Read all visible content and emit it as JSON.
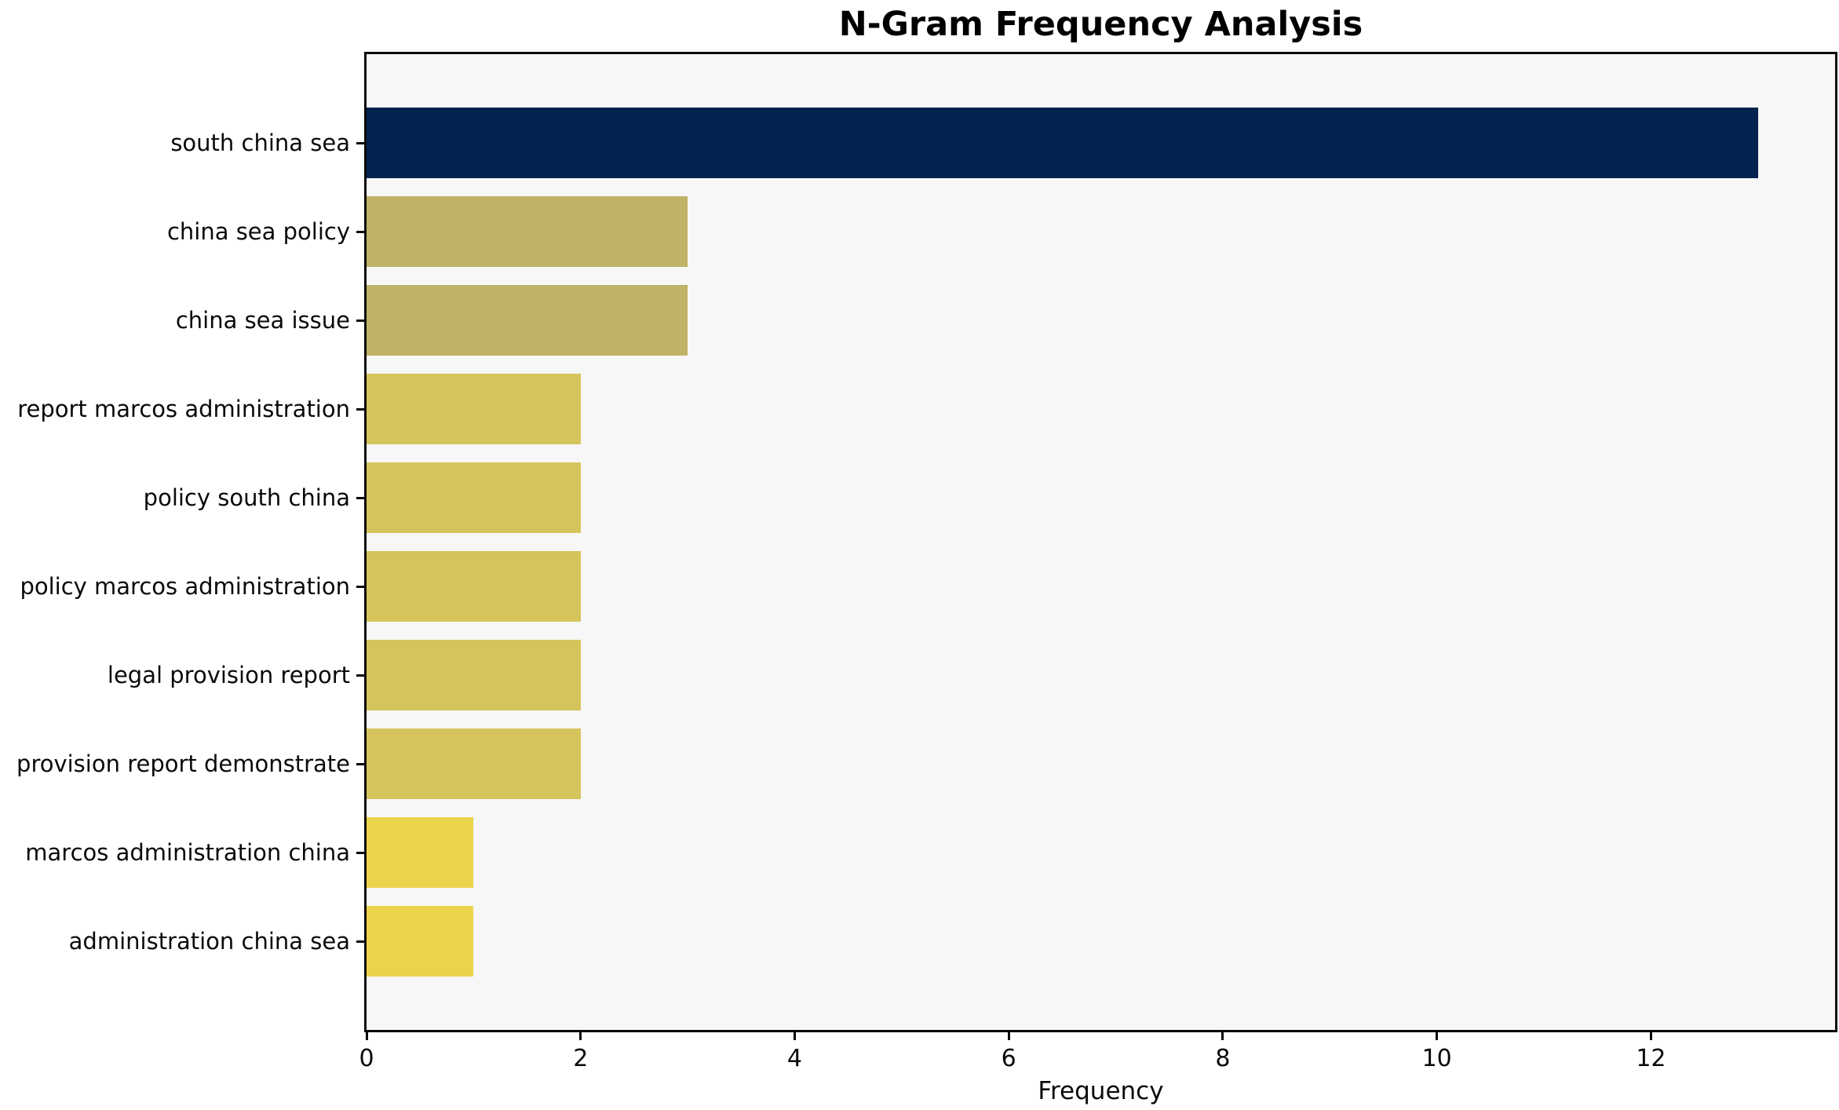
{
  "title": "N-Gram Frequency Analysis",
  "x_axis": {
    "label": "Frequency"
  },
  "chart_data": {
    "type": "bar",
    "orientation": "horizontal",
    "title": "N-Gram Frequency Analysis",
    "xlabel": "Frequency",
    "ylabel": "",
    "xlim": [
      0,
      13.72
    ],
    "xticks": [
      0,
      2,
      4,
      6,
      8,
      10,
      12
    ],
    "grid": false,
    "legend": false,
    "plot_background": "#f7f7f7",
    "figure_background": "#ffffff",
    "categories": [
      "south china sea",
      "china sea policy",
      "china sea issue",
      "report marcos administration",
      "policy south china",
      "policy marcos administration",
      "legal provision report",
      "provision report demonstrate",
      "marcos administration china",
      "administration china sea"
    ],
    "values": [
      13,
      3,
      3,
      2,
      2,
      2,
      2,
      2,
      1,
      1
    ],
    "bar_colors": [
      "#02234e",
      "#c0b267",
      "#c0b267",
      "#d5c45c",
      "#d5c45c",
      "#d5c45c",
      "#d5c45c",
      "#d5c45c",
      "#ebd44b",
      "#ebd44b"
    ]
  }
}
